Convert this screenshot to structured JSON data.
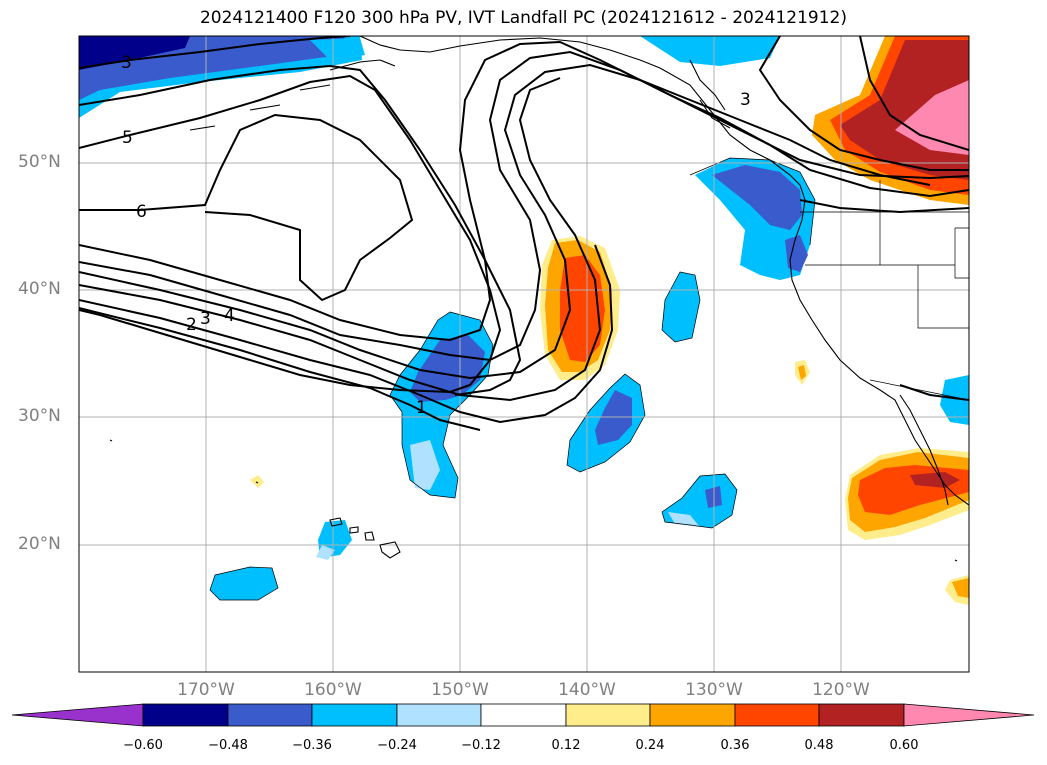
{
  "title": "2024121400 F120 300 hPa PV, IVT Landfall PC (2024121612 - 2024121912)",
  "lat_labels": [
    "50°N",
    "40°N",
    "30°N",
    "20°N"
  ],
  "lon_labels": [
    "170°W",
    "160°W",
    "150°W",
    "140°W",
    "130°W",
    "120°W"
  ],
  "contour_labels": [
    "3",
    "5",
    "6",
    "2",
    "3",
    "4",
    "1",
    "3"
  ],
  "colorbar": {
    "ticks": [
      "−0.60",
      "−0.48",
      "−0.36",
      "−0.24",
      "−0.12",
      "0.12",
      "0.24",
      "0.36",
      "0.48",
      "0.60"
    ],
    "colors": [
      "#9932cc",
      "#00008b",
      "#3a5bcc",
      "#00bfff",
      "#b0e2ff",
      "#ffffff",
      "#ffec8b",
      "#ffa500",
      "#ff4500",
      "#b22222",
      "#ff88b0"
    ]
  }
}
